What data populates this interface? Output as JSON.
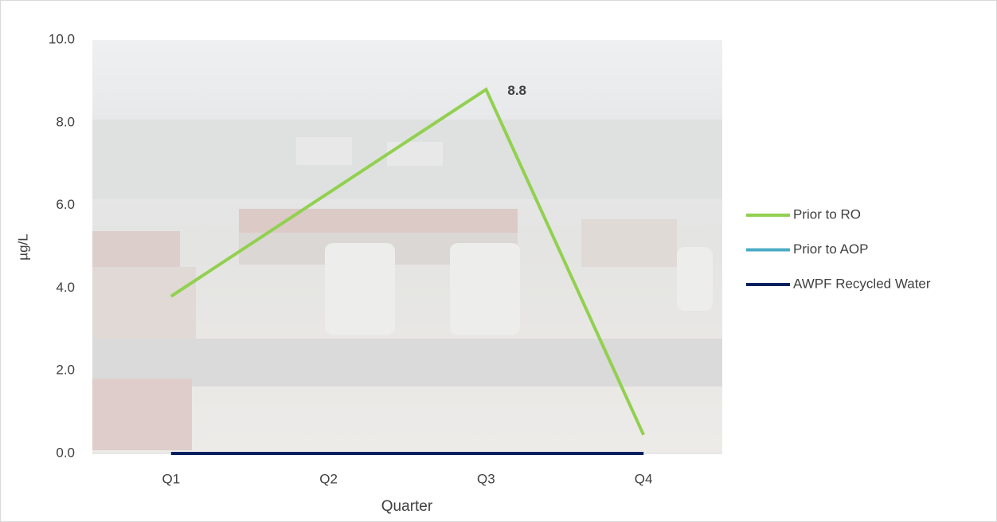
{
  "chart_data": {
    "type": "line",
    "categories": [
      "Q1",
      "Q2",
      "Q3",
      "Q4"
    ],
    "series": [
      {
        "name": "Prior to RO",
        "color": "#92d050",
        "values": [
          3.8,
          6.3,
          8.8,
          0.45
        ],
        "value_labels": [
          null,
          null,
          "8.8",
          null
        ]
      },
      {
        "name": "Prior to AOP",
        "color": "#4bacc6",
        "values": [
          0,
          0,
          0,
          0
        ]
      },
      {
        "name": "AWPF Recycled Water",
        "color": "#002060",
        "values": [
          0,
          0,
          0,
          0
        ]
      }
    ],
    "ylim": [
      0,
      10
    ],
    "yticks": [
      {
        "value": 0,
        "label": "0.0"
      },
      {
        "value": 2,
        "label": "2.0"
      },
      {
        "value": 4,
        "label": "4.0"
      },
      {
        "value": 6,
        "label": "6.0"
      },
      {
        "value": 8,
        "label": "8.0"
      },
      {
        "value": 10,
        "label": "10.0"
      }
    ],
    "ylabel": "µg/L",
    "xlabel": "Quarter",
    "legend": "right"
  }
}
